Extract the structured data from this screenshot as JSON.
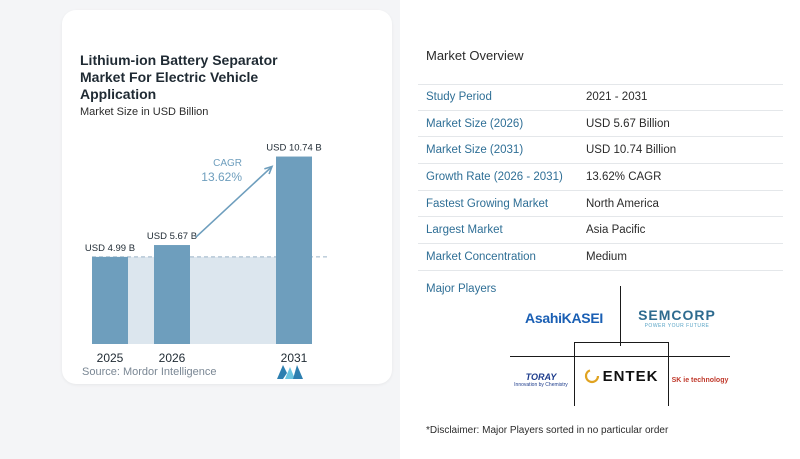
{
  "chart_data": {
    "type": "bar",
    "title": "Lithium-ion Battery Separator Market For Electric Vehicle Application",
    "subtitle": "Market Size in USD Billion",
    "categories": [
      "2025",
      "2026",
      "2031"
    ],
    "values": [
      4.99,
      5.67,
      10.74
    ],
    "value_labels": [
      "USD 4.99 B",
      "USD 5.67 B",
      "USD 10.74 B"
    ],
    "cagr_label": "CAGR",
    "cagr_value": "13.62%",
    "ylim": [
      0,
      11
    ],
    "colors": {
      "bar": "#6e9ebd",
      "bar_top": "#5b8fb2",
      "band": "#dce6ee",
      "arrow": "#6e9ebd",
      "cagr": "#6e9ebd"
    }
  },
  "source": "Source: Mordor Intelligence",
  "overview": {
    "title": "Market Overview",
    "rows": [
      {
        "label": "Study Period",
        "value": "2021 - 2031"
      },
      {
        "label": "Market Size (2026)",
        "value": "USD 5.67 Billion"
      },
      {
        "label": "Market Size (2031)",
        "value": "USD 10.74 Billion"
      },
      {
        "label": "Growth Rate (2026 - 2031)",
        "value": "13.62% CAGR"
      },
      {
        "label": "Fastest Growing Market",
        "value": "North America"
      },
      {
        "label": "Largest Market",
        "value": "Asia Pacific"
      },
      {
        "label": "Market Concentration",
        "value": "Medium"
      }
    ]
  },
  "major_players": {
    "title": "Major Players",
    "logos": {
      "asahi": "AsahiKASEI",
      "semcorp": "SEMCORP",
      "semcorp_tagline": "POWER YOUR FUTURE",
      "toray": "TORAY",
      "toray_tagline": "Innovation by Chemistry",
      "entek": "ENTEK",
      "sk": "SK ie technology"
    }
  },
  "disclaimer": "*Disclaimer: Major Players sorted in no particular order"
}
